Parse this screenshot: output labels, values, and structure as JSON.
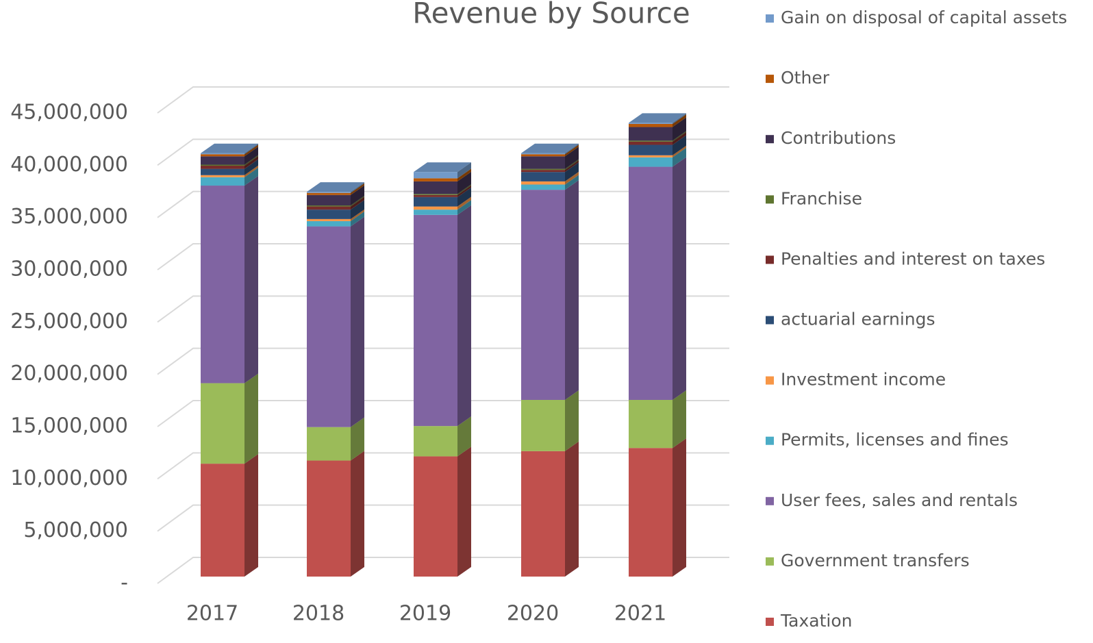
{
  "chart_data": {
    "type": "bar3d_stacked",
    "title": "Revenue by Source",
    "categories": [
      "2017",
      "2018",
      "2019",
      "2020",
      "2021"
    ],
    "series": [
      {
        "name": "Taxation",
        "color": "#c0504d",
        "values": [
          10800000,
          11100000,
          11500000,
          12000000,
          12300000
        ]
      },
      {
        "name": "Government transfers",
        "color": "#9bbb59",
        "values": [
          7700000,
          3200000,
          2900000,
          4900000,
          4600000
        ]
      },
      {
        "name": "User fees, sales and rentals",
        "color": "#8064a2",
        "values": [
          18900000,
          19200000,
          20200000,
          20100000,
          22300000
        ]
      },
      {
        "name": "Permits, licenses and fines",
        "color": "#4bacc6",
        "values": [
          800000,
          500000,
          500000,
          500000,
          900000
        ]
      },
      {
        "name": "Investment income",
        "color": "#f79646",
        "values": [
          200000,
          200000,
          300000,
          300000,
          200000
        ]
      },
      {
        "name": "actuarial earnings",
        "color": "#2c4d75",
        "values": [
          600000,
          900000,
          900000,
          900000,
          1000000
        ]
      },
      {
        "name": "Penalties and interest on taxes",
        "color": "#772c2a",
        "values": [
          300000,
          300000,
          200000,
          200000,
          300000
        ]
      },
      {
        "name": "Franchise",
        "color": "#5f7530",
        "values": [
          100000,
          100000,
          100000,
          100000,
          100000
        ]
      },
      {
        "name": "Contributions",
        "color": "#3f3151",
        "values": [
          800000,
          1000000,
          1200000,
          1200000,
          1300000
        ]
      },
      {
        "name": "Other",
        "color": "#b65708",
        "values": [
          200000,
          200000,
          300000,
          200000,
          300000
        ]
      },
      {
        "name": "Gain on disposal of capital assets",
        "color": "#729aca",
        "values": [
          100000,
          100000,
          600000,
          100000,
          100000
        ]
      }
    ],
    "ylim": [
      0,
      45000000
    ],
    "yticks": [
      {
        "value": 0,
        "label": "-"
      },
      {
        "value": 5000000,
        "label": "5,000,000"
      },
      {
        "value": 10000000,
        "label": "10,000,000"
      },
      {
        "value": 15000000,
        "label": "15,000,000"
      },
      {
        "value": 20000000,
        "label": "20,000,000"
      },
      {
        "value": 25000000,
        "label": "25,000,000"
      },
      {
        "value": 30000000,
        "label": "30,000,000"
      },
      {
        "value": 35000000,
        "label": "35,000,000"
      },
      {
        "value": 40000000,
        "label": "40,000,000"
      },
      {
        "value": 45000000,
        "label": "45,000,000"
      }
    ],
    "grid": true,
    "legend": "right"
  }
}
